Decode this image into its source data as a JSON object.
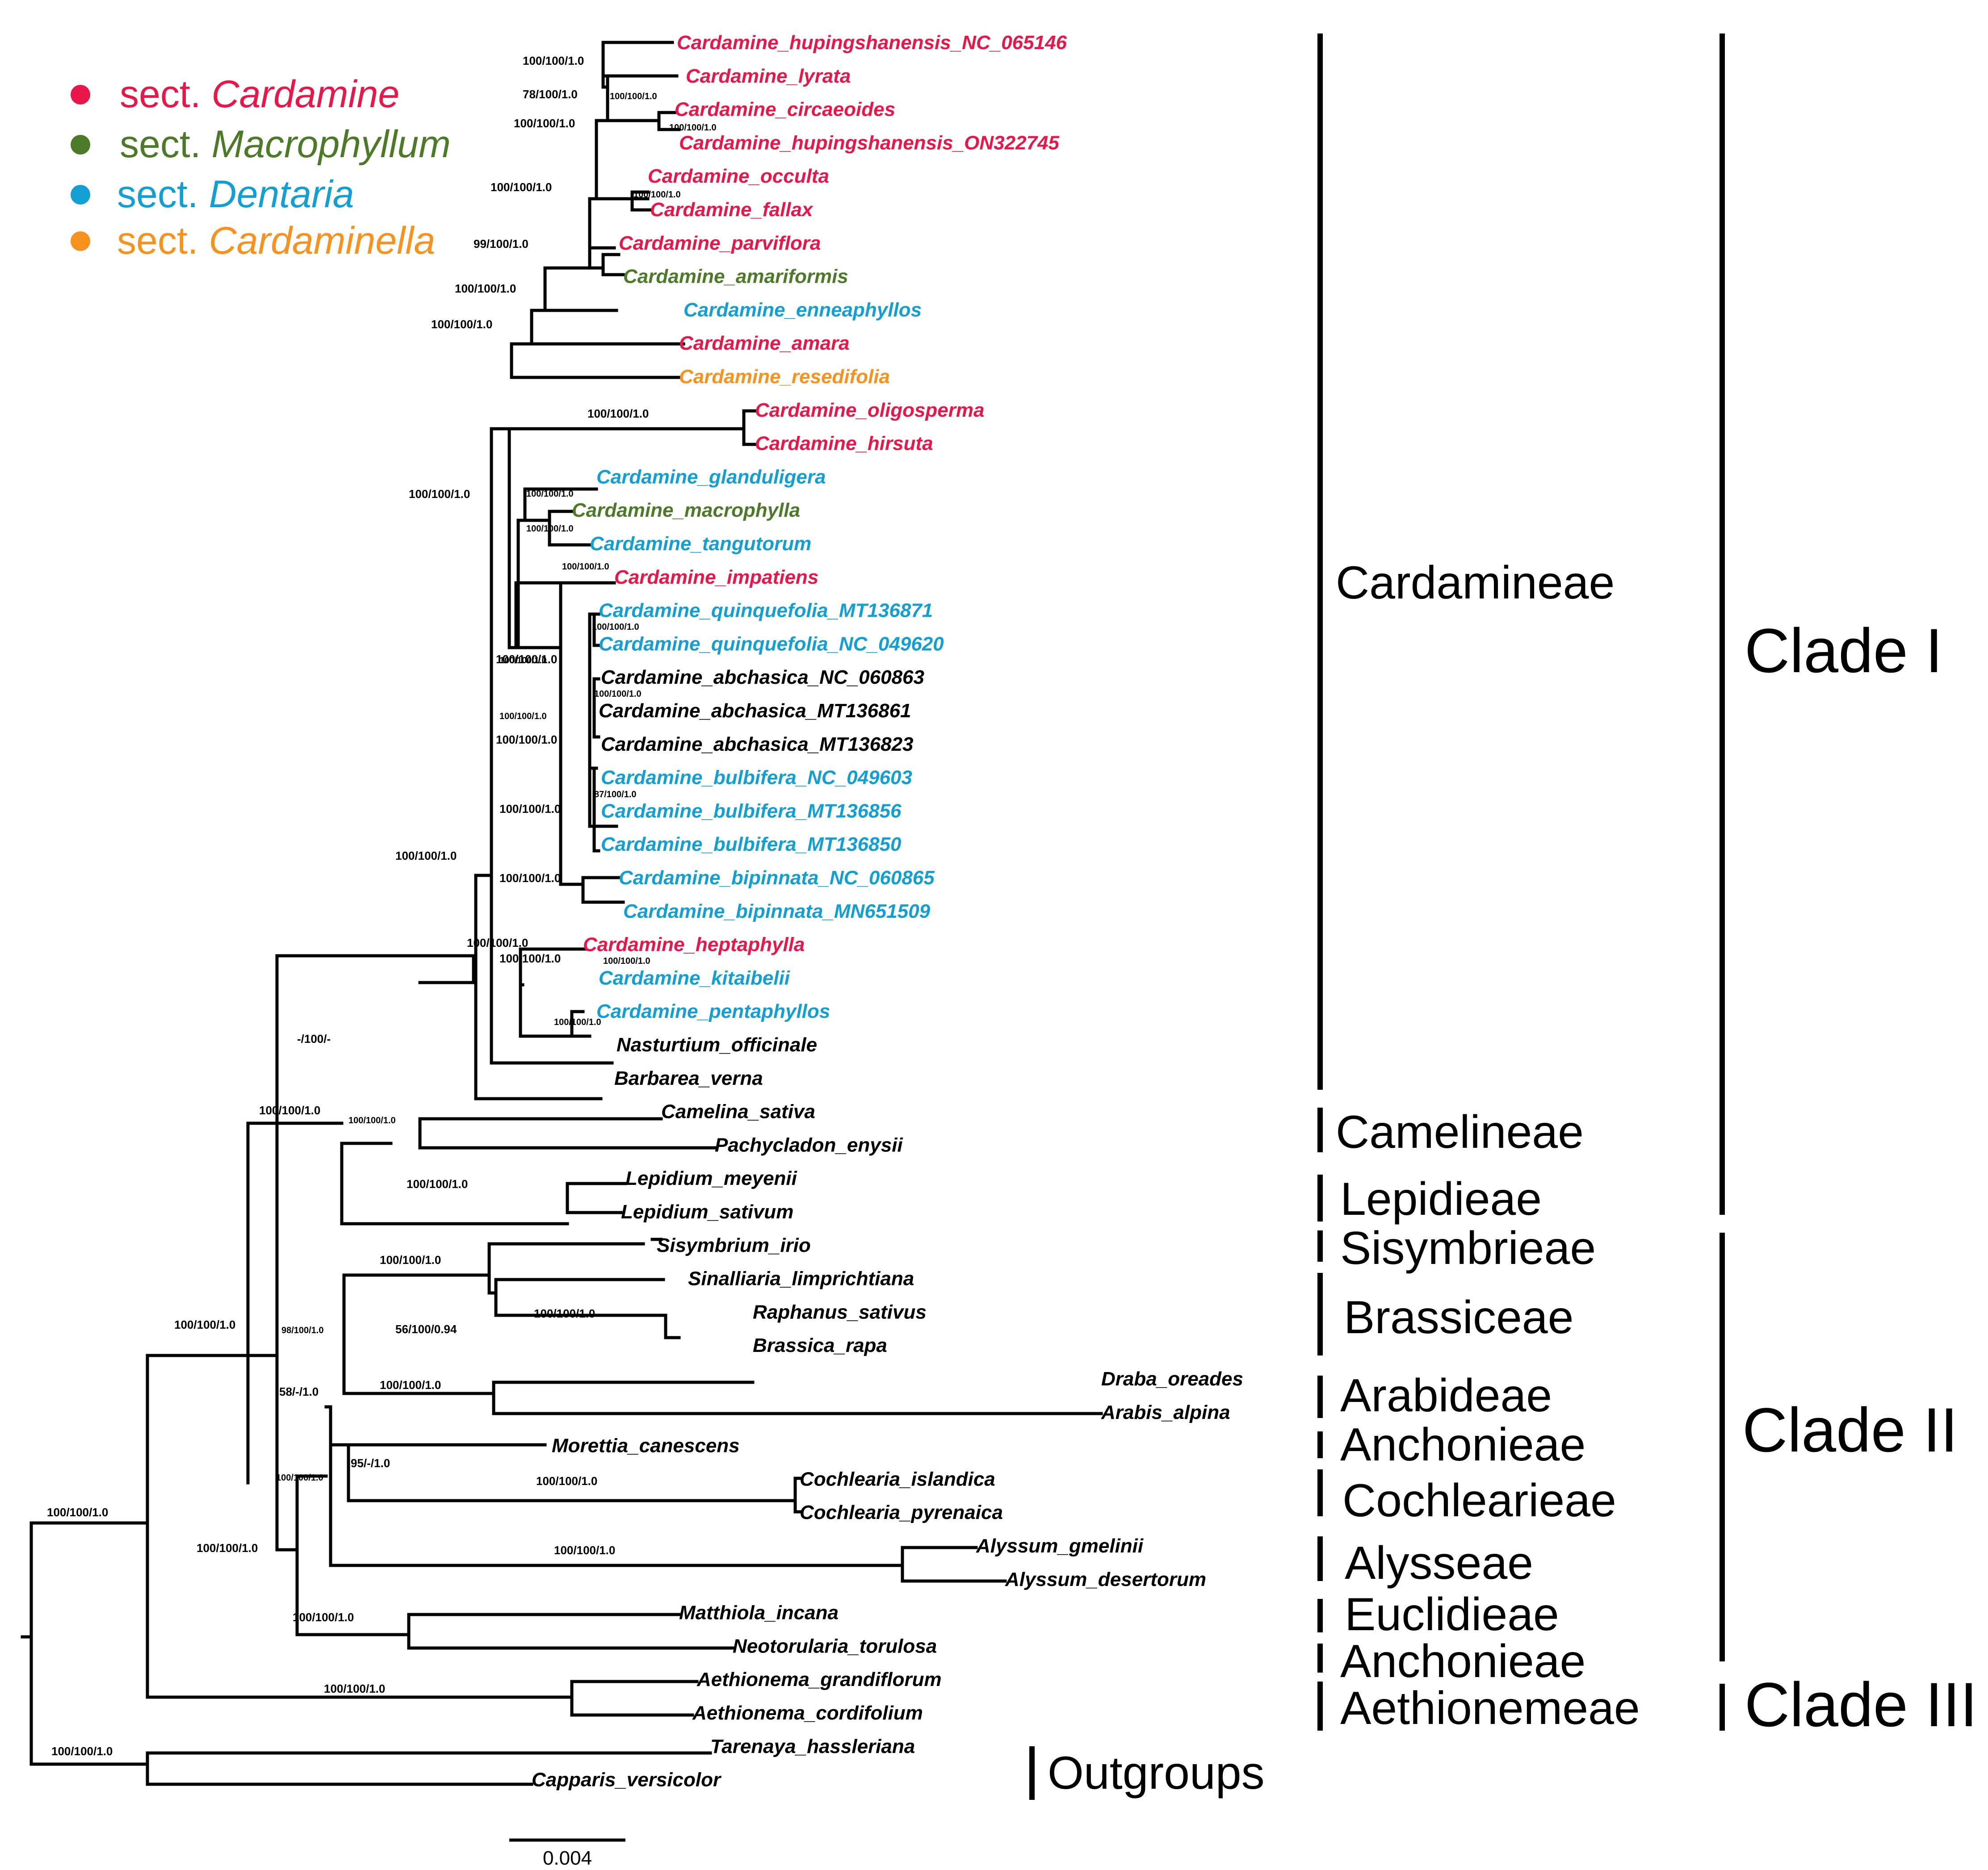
{
  "colors": {
    "sect_cardamine": "#e8174a",
    "sect_macrophyllum": "#4d7a28",
    "sect_dentaria": "#149fd4",
    "sect_cardaminella": "#f7921e",
    "none": "#000000"
  },
  "legend": [
    {
      "prefix": "sect. ",
      "name": "Cardamine",
      "color_key": "sect_cardamine"
    },
    {
      "prefix": "sect. ",
      "name": "Macrophyllum",
      "color_key": "sect_macrophyllum"
    },
    {
      "prefix": "sect. ",
      "name": "Dentaria",
      "color_key": "sect_dentaria"
    },
    {
      "prefix": "sect. ",
      "name": "Cardaminella",
      "color_key": "sect_cardaminella"
    }
  ],
  "taxa": [
    {
      "name": "Cardamine_hupingshanensis_NC_065146",
      "section": "sect_cardamine"
    },
    {
      "name": "Cardamine_lyrata",
      "section": "sect_cardamine"
    },
    {
      "name": "Cardamine_circaeoides",
      "section": "sect_cardamine"
    },
    {
      "name": "Cardamine_hupingshanensis_ON322745",
      "section": "sect_cardamine"
    },
    {
      "name": "Cardamine_occulta",
      "section": "sect_cardamine"
    },
    {
      "name": "Cardamine_fallax",
      "section": "sect_cardamine"
    },
    {
      "name": "Cardamine_parviflora",
      "section": "sect_cardamine"
    },
    {
      "name": "Cardamine_amariformis",
      "section": "sect_macrophyllum"
    },
    {
      "name": "Cardamine_enneaphyllos",
      "section": "sect_dentaria"
    },
    {
      "name": "Cardamine_amara",
      "section": "sect_cardamine"
    },
    {
      "name": "Cardamine_resedifolia",
      "section": "sect_cardaminella"
    },
    {
      "name": "Cardamine_oligosperma",
      "section": "sect_cardamine"
    },
    {
      "name": "Cardamine_hirsuta",
      "section": "sect_cardamine"
    },
    {
      "name": "Cardamine_glanduligera",
      "section": "sect_dentaria"
    },
    {
      "name": "Cardamine_macrophylla",
      "section": "sect_macrophyllum"
    },
    {
      "name": "Cardamine_tangutorum",
      "section": "sect_dentaria"
    },
    {
      "name": "Cardamine_impatiens",
      "section": "sect_cardamine"
    },
    {
      "name": "Cardamine_quinquefolia_MT136871",
      "section": "sect_dentaria"
    },
    {
      "name": "Cardamine_quinquefolia_NC_049620",
      "section": "sect_dentaria"
    },
    {
      "name": "Cardamine_abchasica_NC_060863",
      "section": "none"
    },
    {
      "name": "Cardamine_abchasica_MT136861",
      "section": "none"
    },
    {
      "name": "Cardamine_abchasica_MT136823",
      "section": "none"
    },
    {
      "name": "Cardamine_bulbifera_NC_049603",
      "section": "sect_dentaria"
    },
    {
      "name": "Cardamine_bulbifera_MT136856",
      "section": "sect_dentaria"
    },
    {
      "name": "Cardamine_bulbifera_MT136850",
      "section": "sect_dentaria"
    },
    {
      "name": "Cardamine_bipinnata_NC_060865",
      "section": "sect_dentaria"
    },
    {
      "name": "Cardamine_bipinnata_MN651509",
      "section": "sect_dentaria"
    },
    {
      "name": "Cardamine_heptaphylla",
      "section": "sect_cardamine"
    },
    {
      "name": "Cardamine_kitaibelii",
      "section": "sect_dentaria"
    },
    {
      "name": "Cardamine_pentaphyllos",
      "section": "sect_dentaria"
    },
    {
      "name": "Nasturtium_officinale",
      "section": "none"
    },
    {
      "name": "Barbarea_verna",
      "section": "none"
    },
    {
      "name": "Camelina_sativa",
      "section": "none"
    },
    {
      "name": "Pachycladon_enysii",
      "section": "none"
    },
    {
      "name": "Lepidium_meyenii",
      "section": "none"
    },
    {
      "name": "Lepidium_sativum",
      "section": "none"
    },
    {
      "name": "Sisymbrium_irio",
      "section": "none"
    },
    {
      "name": "Sinalliaria_limprichtiana",
      "section": "none"
    },
    {
      "name": "Raphanus_sativus",
      "section": "none"
    },
    {
      "name": "Brassica_rapa",
      "section": "none"
    },
    {
      "name": "Draba_oreades",
      "section": "none"
    },
    {
      "name": "Arabis_alpina",
      "section": "none"
    },
    {
      "name": "Morettia_canescens",
      "section": "none"
    },
    {
      "name": "Cochlearia_islandica",
      "section": "none"
    },
    {
      "name": "Cochlearia_pyrenaica",
      "section": "none"
    },
    {
      "name": "Alyssum_gmelinii",
      "section": "none"
    },
    {
      "name": "Alyssum_desertorum",
      "section": "none"
    },
    {
      "name": "Matthiola_incana",
      "section": "none"
    },
    {
      "name": "Neotorularia_torulosa",
      "section": "none"
    },
    {
      "name": "Aethionema_grandiflorum",
      "section": "none"
    },
    {
      "name": "Aethionema_cordifolium",
      "section": "none"
    },
    {
      "name": "Tarenaya_hassleriana",
      "section": "none"
    },
    {
      "name": "Capparis_versicolor",
      "section": "none"
    }
  ],
  "support_values": [
    "100/100/1.0",
    "78/100/1.0",
    "100/100/1.0",
    "100/100/1.0",
    "100/100/1.0",
    "100/100/1.0",
    "100/100/1.0",
    "99/100/1.0",
    "100/100/1.0",
    "100/100/1.0",
    "100/100/1.0",
    "100/100/1.0",
    "100/100/1.0",
    "100/100/1.0",
    "100/100/1.0",
    "100/100/1.0",
    "100/100/1.0",
    "100/100/1.0",
    "100/100/1.0",
    "100/100/1.0",
    "100/100/1.0",
    "87/100/1.0",
    "100/100/1.0",
    "100/100/1.0",
    "100/100/1.0",
    "100/100/1.0",
    "100/100/1.0",
    "100/100/1.0",
    "100/100/1.0",
    "-/100/-",
    "100/100/1.0",
    "100/100/1.0",
    "100/100/1.0",
    "100/100/1.0",
    "56/100/0.94",
    "100/100/1.0",
    "98/100/1.0",
    "100/100/1.0",
    "58/-/1.0",
    "100/100/1.0",
    "95/-/1.0",
    "100/100/1.0",
    "100/100/1.0",
    "100/100/1.0",
    "100/100/1.0",
    "100/100/1.0",
    "100/100/1.0",
    "100/100/1.0",
    "100/100/1.0"
  ],
  "tribes": [
    "Cardamineae",
    "Camelineae",
    "Lepidieae",
    "Sisymbrieae",
    "Brassiceae",
    "Arabideae",
    "Anchonieae",
    "Cochlearieae",
    "Alysseae",
    "Euclidieae",
    "Anchonieae",
    "Aethionemeae",
    "Outgroups"
  ],
  "clades": [
    "Clade I",
    "Clade II",
    "Clade III"
  ],
  "scale_bar": {
    "label": "0.004",
    "value": 0.004
  }
}
